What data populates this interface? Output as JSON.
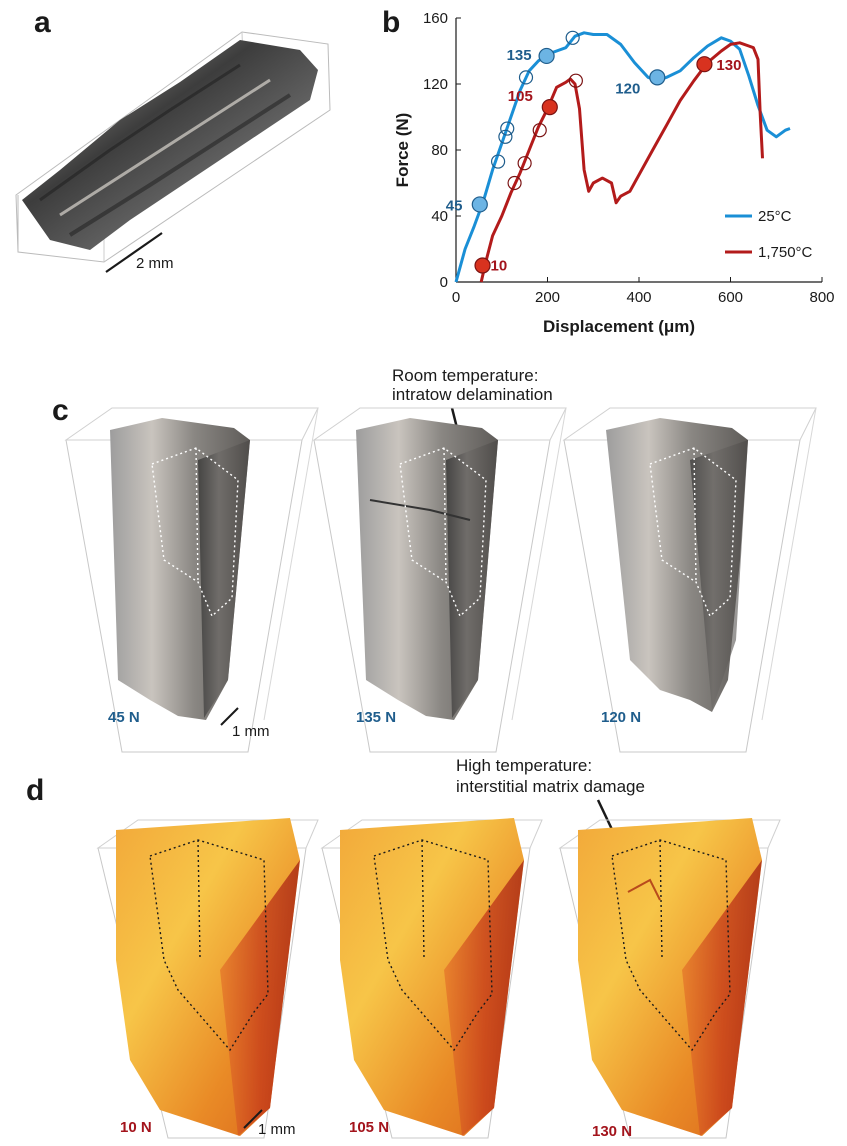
{
  "panels": {
    "a": {
      "label": "a",
      "scale": "2 mm"
    },
    "b": {
      "label": "b"
    },
    "c": {
      "label": "c",
      "annotation_line1": "Room temperature:",
      "annotation_line2": "intratow delamination",
      "forces": [
        "45 N",
        "135 N",
        "120 N"
      ],
      "scale": "1 mm"
    },
    "d": {
      "label": "d",
      "annotation_line1": "High temperature:",
      "annotation_line2": "interstitial matrix damage",
      "forces": [
        "10 N",
        "105 N",
        "130 N"
      ],
      "scale": "1 mm"
    }
  },
  "colors": {
    "blue": "#1a8fd6",
    "blue_label": "#1f5d8c",
    "red": "#b31b1b",
    "red_label": "#a3141c",
    "blue_marker": "#6cb4e4",
    "red_marker": "#d8321f"
  },
  "chart_data": {
    "type": "line",
    "xlabel": "Displacement (μm)",
    "ylabel": "Force (N)",
    "xlim": [
      0,
      800
    ],
    "ylim": [
      0,
      160
    ],
    "xticks": [
      0,
      200,
      400,
      600,
      800
    ],
    "yticks": [
      0,
      40,
      80,
      120,
      160
    ],
    "legend_position": "bottom-right",
    "series": [
      {
        "name": "25°C",
        "color": "#1a8fd6",
        "x": [
          0,
          20,
          40,
          60,
          80,
          100,
          120,
          140,
          160,
          180,
          200,
          220,
          240,
          260,
          280,
          300,
          330,
          360,
          390,
          420,
          440,
          460,
          490,
          520,
          550,
          580,
          600,
          620,
          640,
          660,
          680,
          700,
          720,
          730
        ],
        "y": [
          0,
          20,
          34,
          49,
          68,
          84,
          100,
          116,
          128,
          134,
          138,
          140,
          142,
          149,
          151,
          150,
          150,
          144,
          133,
          124,
          122,
          124,
          128,
          136,
          143,
          148,
          146,
          141,
          125,
          107,
          92,
          88,
          92,
          93
        ]
      },
      {
        "name": "1,750°C",
        "color": "#b31b1b",
        "x": [
          55,
          65,
          80,
          100,
          120,
          140,
          160,
          180,
          200,
          220,
          240,
          250,
          260,
          270,
          280,
          290,
          300,
          320,
          340,
          350,
          360,
          380,
          400,
          430,
          460,
          490,
          520,
          550,
          580,
          600,
          620,
          640,
          650,
          660,
          665,
          670
        ],
        "y": [
          0,
          12,
          28,
          40,
          54,
          66,
          80,
          94,
          105,
          118,
          121,
          123,
          120,
          105,
          68,
          55,
          60,
          63,
          60,
          48,
          52,
          55,
          65,
          80,
          95,
          110,
          122,
          133,
          140,
          144,
          145,
          143,
          142,
          135,
          102,
          75
        ]
      }
    ],
    "filled_markers": [
      {
        "series": "25°C",
        "label": "45",
        "x": 52,
        "y": 47
      },
      {
        "series": "25°C",
        "label": "135",
        "x": 198,
        "y": 137
      },
      {
        "series": "25°C",
        "label": "120",
        "x": 440,
        "y": 124
      },
      {
        "series": "1,750°C",
        "label": "10",
        "x": 58,
        "y": 10
      },
      {
        "series": "1,750°C",
        "label": "105",
        "x": 205,
        "y": 106
      },
      {
        "series": "1,750°C",
        "label": "130",
        "x": 543,
        "y": 132
      }
    ],
    "open_markers": [
      {
        "series": "25°C",
        "x": 92,
        "y": 73
      },
      {
        "series": "25°C",
        "x": 108,
        "y": 88
      },
      {
        "series": "25°C",
        "x": 112,
        "y": 93
      },
      {
        "series": "25°C",
        "x": 153,
        "y": 124
      },
      {
        "series": "25°C",
        "x": 255,
        "y": 148
      },
      {
        "series": "1,750°C",
        "x": 128,
        "y": 60
      },
      {
        "series": "1,750°C",
        "x": 150,
        "y": 72
      },
      {
        "series": "1,750°C",
        "x": 183,
        "y": 92
      },
      {
        "series": "1,750°C",
        "x": 262,
        "y": 122
      }
    ]
  }
}
